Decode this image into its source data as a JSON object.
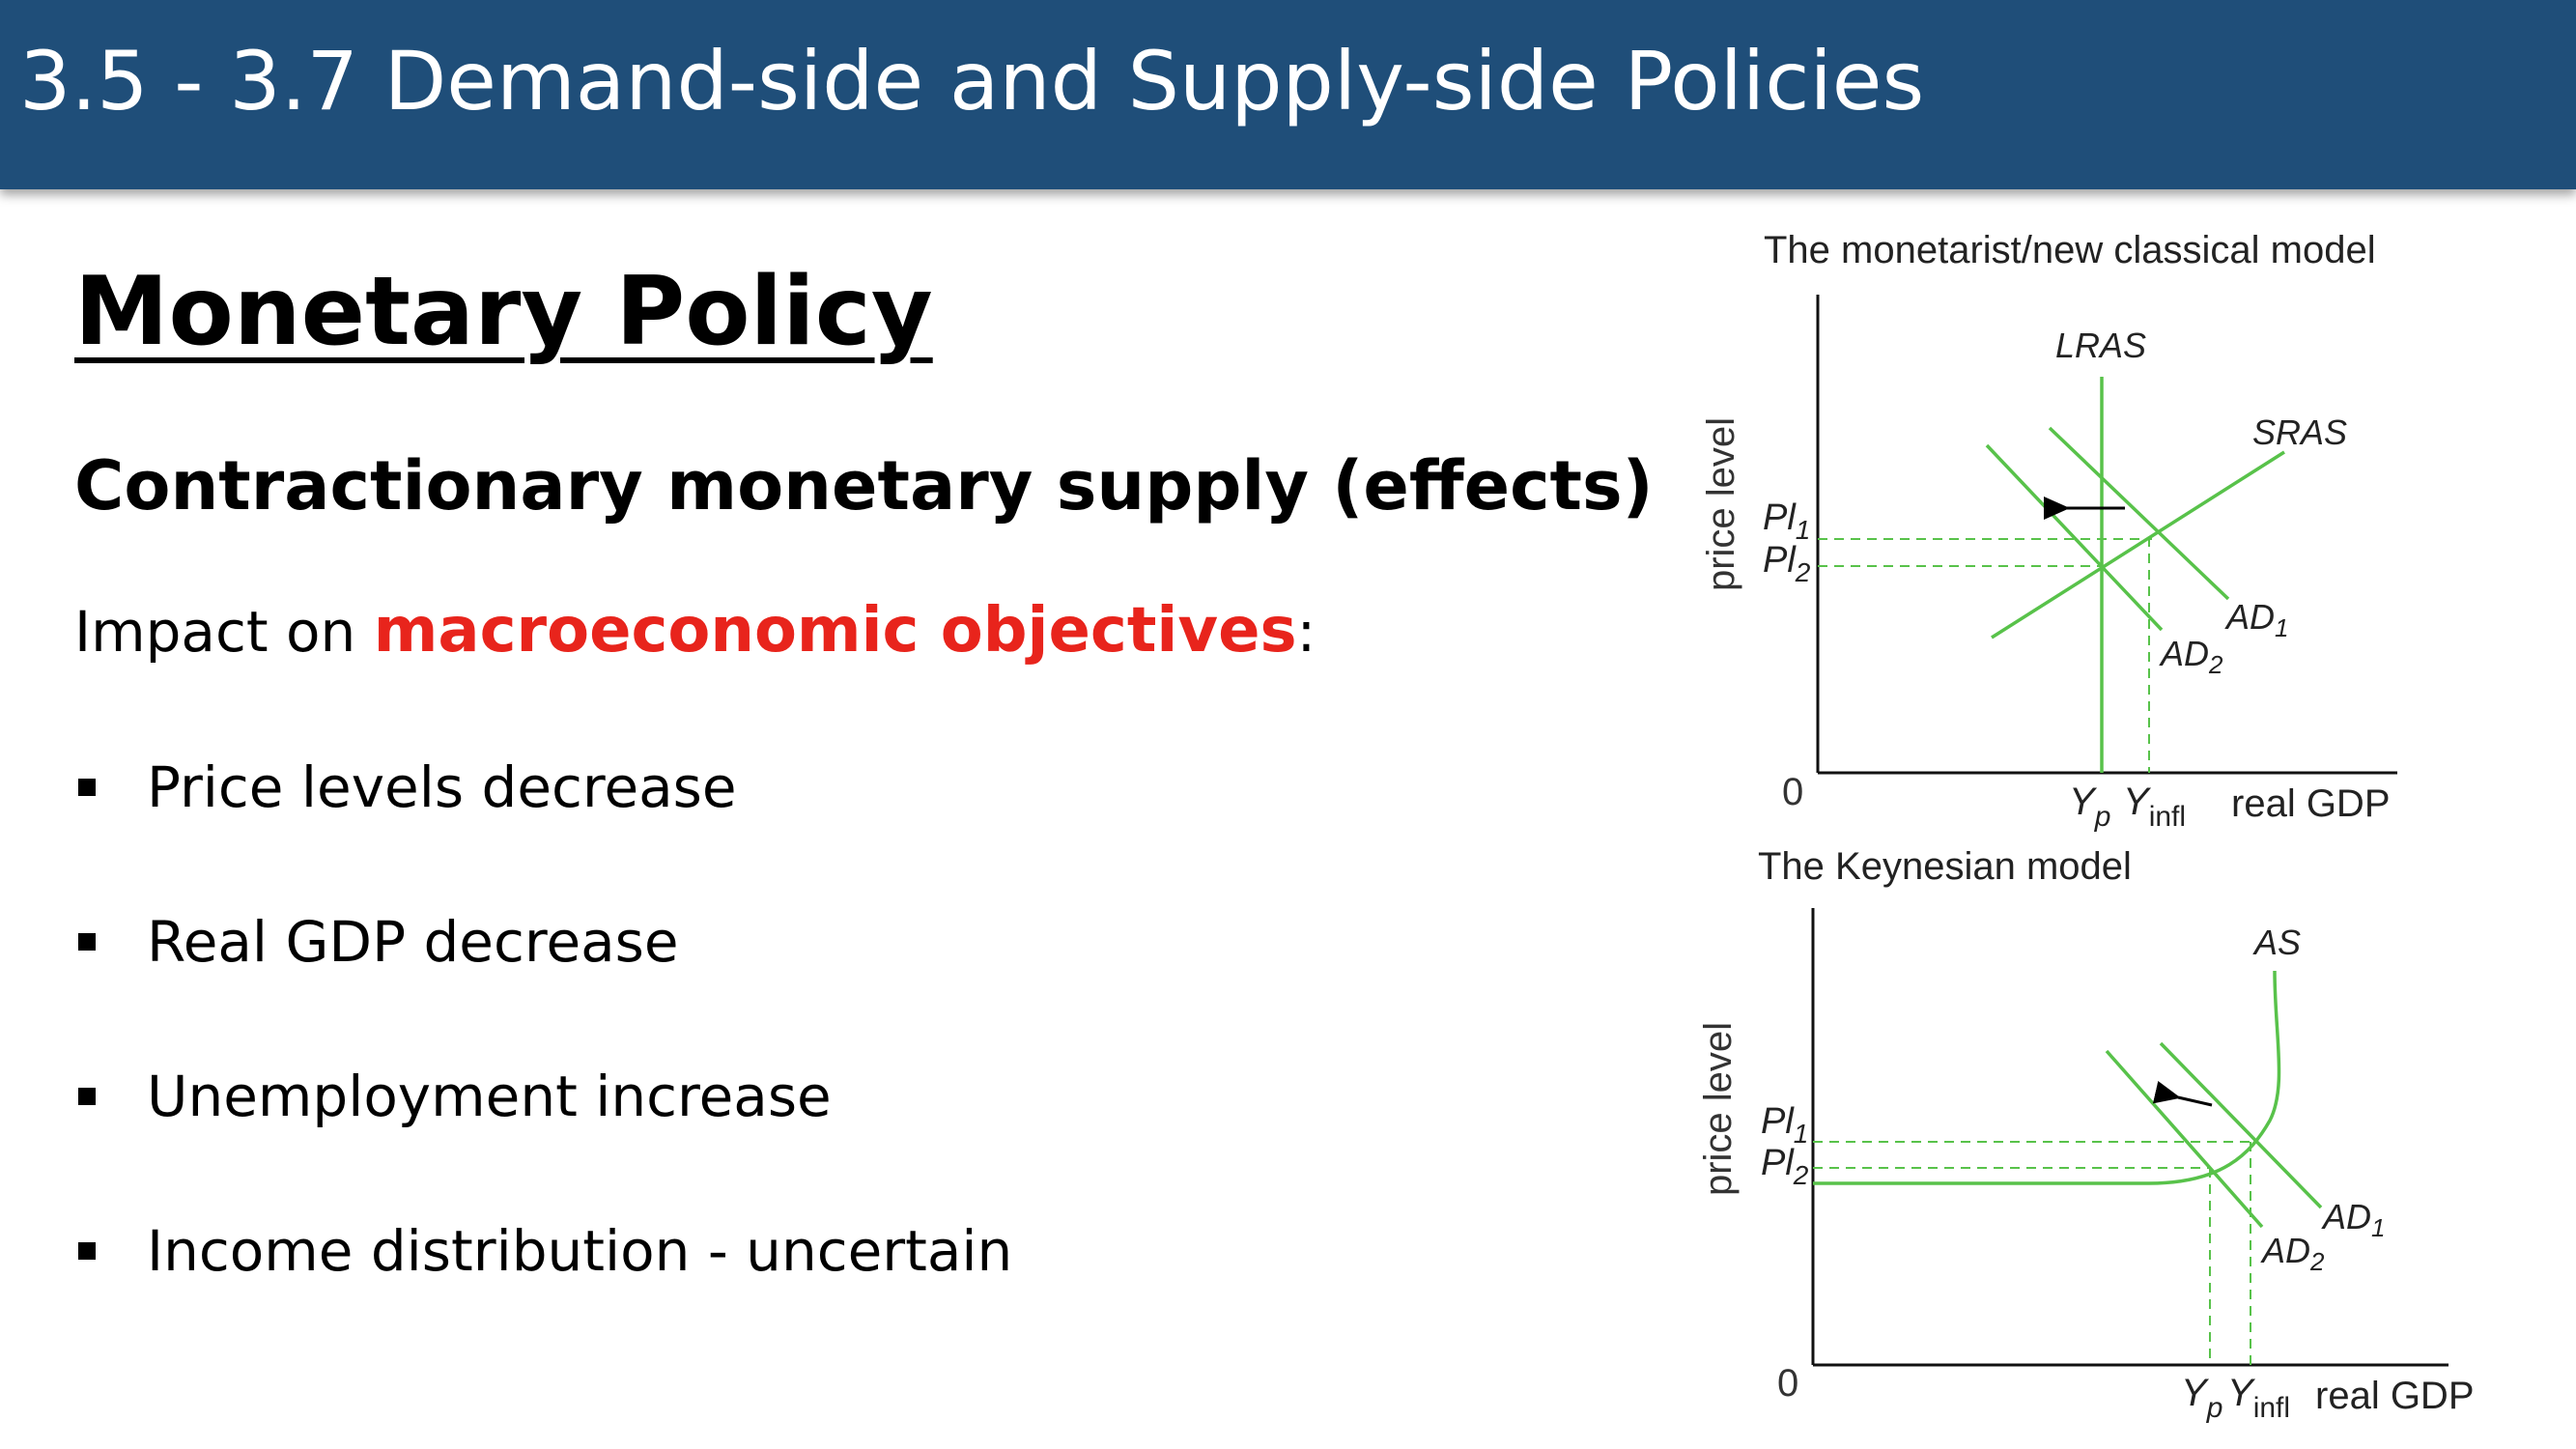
{
  "slide": {
    "title": "3.5 - 3.7 Demand-side and Supply-side Policies",
    "heading": "Monetary Policy",
    "subheading": "Contractionary monetary supply (effects)",
    "impact_prefix": "Impact on ",
    "impact_highlight": "macroeconomic objectives",
    "impact_suffix": ":",
    "bullets": [
      "Price levels decrease",
      "Real GDP decrease",
      "Unemployment increase",
      "Income distribution - uncertain"
    ]
  },
  "diagrams": {
    "monetarist": {
      "title": "The monetarist/new classical model",
      "y_axis": "price level",
      "x_axis": "real GDP",
      "origin": "0",
      "curves": {
        "lras": "LRAS",
        "sras": "SRAS",
        "ad1": "AD",
        "ad1_sub": "1",
        "ad2": "AD",
        "ad2_sub": "2"
      },
      "y_ticks": [
        {
          "main": "Pl",
          "sub": "1"
        },
        {
          "main": "Pl",
          "sub": "2"
        }
      ],
      "x_ticks": [
        {
          "main": "Y",
          "sub": "p"
        },
        {
          "main": "Y",
          "sub": "infl"
        }
      ]
    },
    "keynesian": {
      "title": "The Keynesian model",
      "y_axis": "price level",
      "x_axis": "real GDP",
      "origin": "0",
      "curves": {
        "as": "AS",
        "ad1": "AD",
        "ad1_sub": "1",
        "ad2": "AD",
        "ad2_sub": "2"
      },
      "y_ticks": [
        {
          "main": "Pl",
          "sub": "1"
        },
        {
          "main": "Pl",
          "sub": "2"
        }
      ],
      "x_ticks": [
        {
          "main": "Y",
          "sub": "p"
        },
        {
          "main": "Y",
          "sub": "infl"
        }
      ]
    }
  },
  "colors": {
    "header": "#1f4e79",
    "highlight": "#e8241c",
    "curve": "#58c24a"
  }
}
